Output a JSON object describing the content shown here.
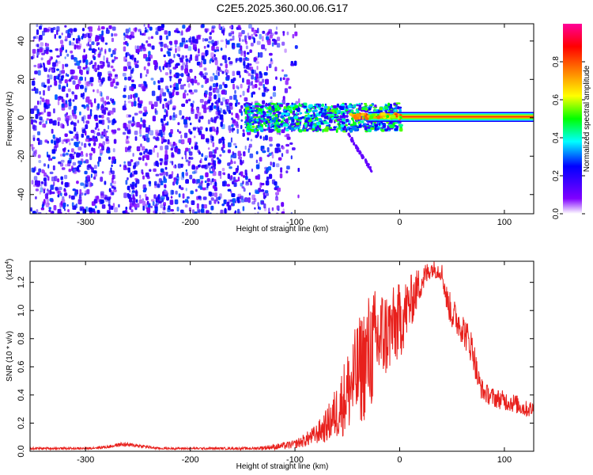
{
  "title": "C2E5.2025.360.00.06.G17",
  "chart_data": [
    {
      "type": "heatmap",
      "xlabel": "Height of straight line (km)",
      "ylabel": "Frequency (Hz)",
      "xlim": [
        -353,
        128
      ],
      "ylim": [
        -50,
        49
      ],
      "xticks": [
        -300,
        -200,
        -100,
        0,
        100
      ],
      "yticks": [
        -40,
        -20,
        0,
        20,
        40
      ],
      "xtick_labels": [
        "-300",
        "-200",
        "-100",
        "0",
        "100"
      ],
      "ytick_labels": [
        "-40",
        "-20",
        "0",
        "20",
        "40"
      ],
      "colorbar": {
        "label": "Normalized spectral amplitude",
        "range": [
          0,
          1
        ],
        "ticks": [
          0.0,
          0.2,
          0.4,
          0.6,
          0.8
        ],
        "tick_labels": [
          "0.0",
          "0.2",
          "0.4",
          "0.6",
          "0.8"
        ],
        "colormap": [
          "#ffffff",
          "#7a00ff",
          "#0000ff",
          "#00ffff",
          "#00ff00",
          "#ffff00",
          "#ff7f00",
          "#ff0000",
          "#ff00a0"
        ]
      },
      "features": {
        "noise_region_x": [
          -353,
          -100
        ],
        "noise_amplitude": 0.25,
        "gap_band_x": [
          -272,
          -265
        ],
        "signal_band": {
          "x": [
            -150,
            128
          ],
          "center_frequency": 0.5,
          "peak_amplitude": 1.0
        },
        "blob_region": {
          "x": [
            -150,
            0
          ],
          "frequency": [
            -6,
            8
          ],
          "amplitude": 0.45
        },
        "tail": {
          "x": [
            -50,
            -28
          ],
          "frequency": [
            -8,
            -27
          ]
        }
      }
    },
    {
      "type": "line",
      "xlabel": "Height of straight line (km)",
      "ylabel": "SNR (10 * v/v)",
      "multiplier_label": "(x10",
      "multiplier_exponent": "4",
      "xlim": [
        -353,
        128
      ],
      "ylim": [
        0,
        1.35
      ],
      "xticks": [
        -300,
        -200,
        -100,
        0,
        100
      ],
      "yticks": [
        0.0,
        0.2,
        0.4,
        0.6,
        0.8,
        1.0,
        1.2
      ],
      "xtick_labels": [
        "-300",
        "-200",
        "-100",
        "0",
        "100"
      ],
      "ytick_labels": [
        "0.0",
        "0.2",
        "0.4",
        "0.6",
        "0.8",
        "1.0",
        "1.2"
      ],
      "color": "#e8201c",
      "series": [
        {
          "x": [
            -353,
            -330,
            -300,
            -280,
            -265,
            -250,
            -230,
            -200,
            -170,
            -140,
            -120,
            -100,
            -90,
            -80,
            -70,
            -60,
            -50,
            -40,
            -30,
            -20,
            -10,
            0,
            10,
            20,
            30,
            40,
            45,
            50,
            60,
            70,
            75,
            80,
            90,
            100,
            110,
            120,
            128
          ],
          "values": [
            0.02,
            0.02,
            0.02,
            0.03,
            0.05,
            0.04,
            0.02,
            0.02,
            0.02,
            0.02,
            0.03,
            0.05,
            0.08,
            0.12,
            0.18,
            0.28,
            0.42,
            0.55,
            0.68,
            0.8,
            0.85,
            0.92,
            1.05,
            1.2,
            1.3,
            1.28,
            1.08,
            0.98,
            0.88,
            0.72,
            0.5,
            0.42,
            0.38,
            0.36,
            0.34,
            0.3,
            0.3
          ],
          "spread": [
            0.008,
            0.008,
            0.008,
            0.01,
            0.015,
            0.012,
            0.008,
            0.008,
            0.008,
            0.01,
            0.02,
            0.03,
            0.05,
            0.07,
            0.12,
            0.2,
            0.3,
            0.38,
            0.45,
            0.38,
            0.3,
            0.28,
            0.2,
            0.12,
            0.06,
            0.07,
            0.1,
            0.12,
            0.12,
            0.12,
            0.1,
            0.07,
            0.07,
            0.07,
            0.07,
            0.06,
            0.06
          ]
        }
      ]
    }
  ]
}
